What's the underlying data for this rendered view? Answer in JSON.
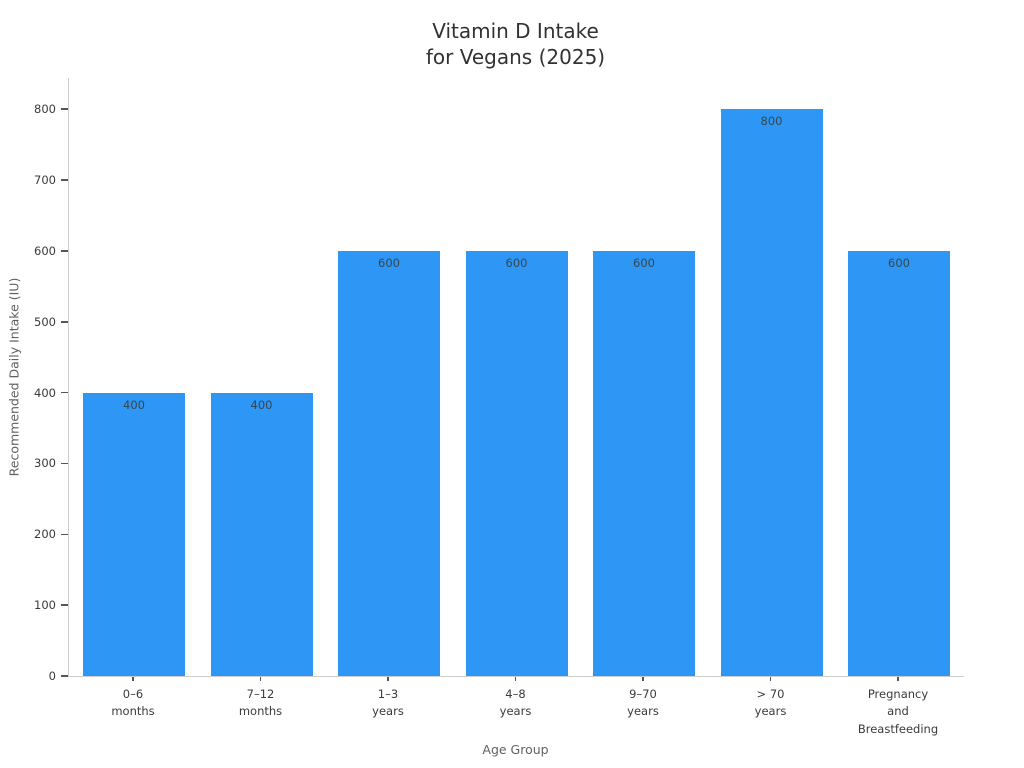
{
  "chart_data": {
    "type": "bar",
    "title": "Vitamin D Intake\nfor Vegans (2025)",
    "xlabel": "Age Group",
    "ylabel": "Recommended Daily Intake (IU)",
    "categories": [
      "0–6\nmonths",
      "7–12\nmonths",
      "1–3\nyears",
      "4–8\nyears",
      "9–70\nyears",
      "> 70\nyears",
      "Pregnancy\nand\nBreastfeeding"
    ],
    "values": [
      400,
      400,
      600,
      600,
      600,
      800,
      600
    ],
    "bar_value_labels": [
      "400",
      "400",
      "600",
      "600",
      "600",
      "800",
      "600"
    ],
    "yticks": [
      0,
      100,
      200,
      300,
      400,
      500,
      600,
      700,
      800
    ],
    "ylim": [
      0,
      844
    ],
    "grid": false,
    "legend": null,
    "bar_color": "#2E96F5"
  },
  "colors": {
    "background": "#ffffff",
    "bar": "#2E96F5",
    "title_text": "#323232",
    "tick_text": "#3b3b3b",
    "axis_title_text": "#616161",
    "spine": "#cccccc",
    "tick_mark": "#555555",
    "bar_value_text": "#37474f"
  }
}
